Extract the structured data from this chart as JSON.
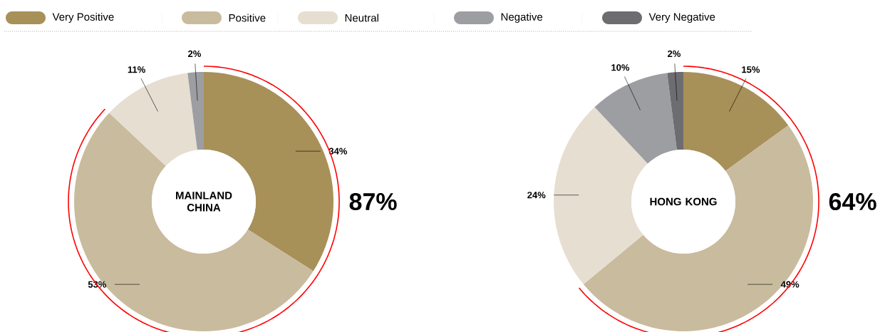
{
  "chart_data": [
    {
      "type": "donut",
      "title": "MAINLAND CHINA",
      "categories": [
        "Very Positive",
        "Positive",
        "Neutral",
        "Negative",
        "Very Negative"
      ],
      "values": [
        34,
        53,
        11,
        2,
        0
      ],
      "value_labels": [
        "34%",
        "53%",
        "11%",
        "2%",
        null
      ],
      "colors": [
        "#a89059",
        "#c9bb9d",
        "#e6ded1",
        "#9d9ea2",
        "#6d6c70"
      ],
      "legend": "top",
      "annotations": [
        "87%"
      ]
    },
    {
      "type": "donut",
      "title": "HONG KONG",
      "categories": [
        null,
        null,
        null,
        null,
        null
      ],
      "values": [
        15,
        49,
        24,
        10,
        2
      ],
      "value_labels": [
        "15%",
        "49%",
        "24%",
        "10%",
        "2%"
      ],
      "colors": [
        "#a89059",
        "#c9bb9d",
        "#e6ded1",
        "#9d9ea2",
        "#6d6c70"
      ],
      "annotations": [
        "64%"
      ]
    }
  ]
}
